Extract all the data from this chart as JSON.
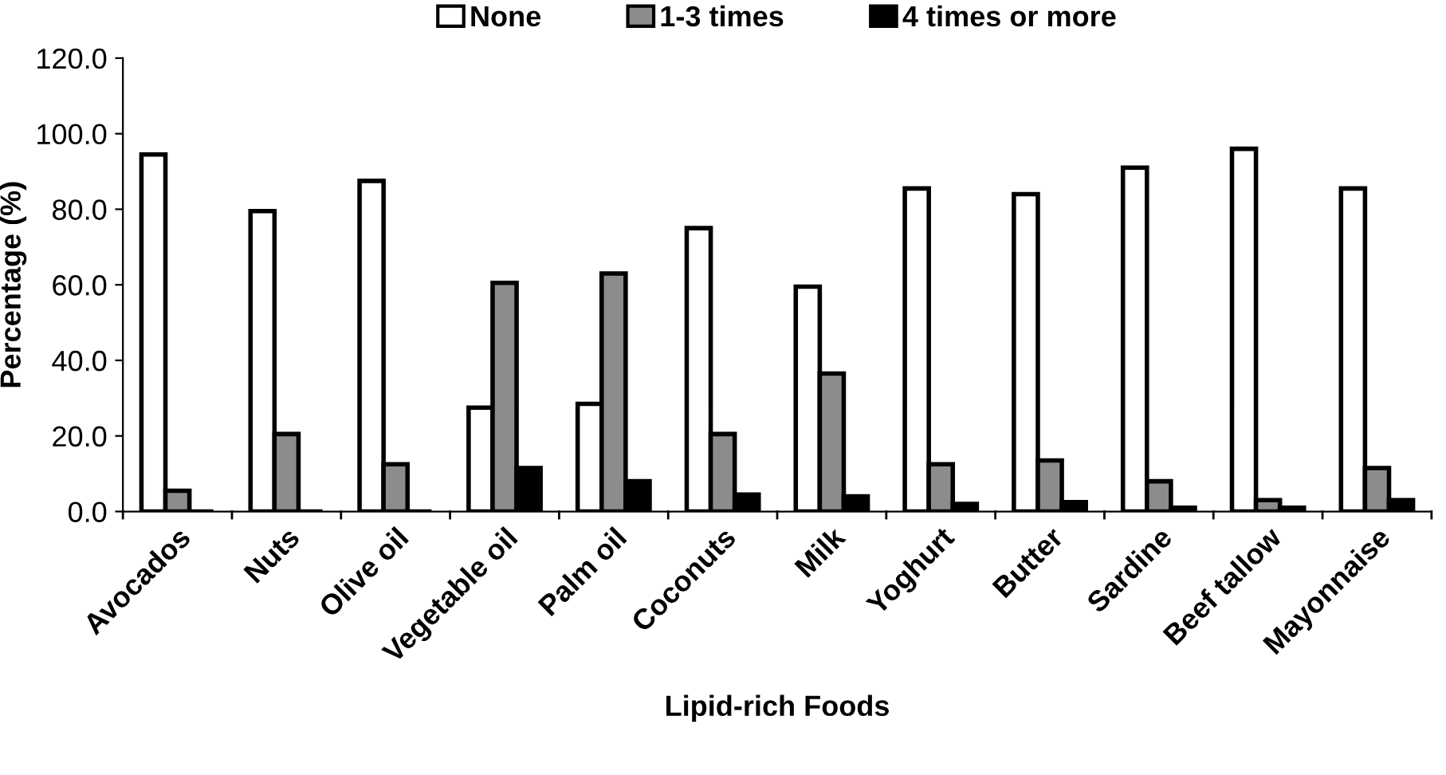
{
  "chart_data": {
    "type": "bar",
    "xlabel": "Lipid-rich Foods",
    "ylabel": "Percentage (%)",
    "categories": [
      "Avocados",
      "Nuts",
      "Olive oil",
      "Vegetable oil",
      "Palm oil",
      "Coconuts",
      "Milk",
      "Yoghurt",
      "Butter",
      "Sardine",
      "Beef tallow",
      "Mayonnaise"
    ],
    "series": [
      {
        "name": "None",
        "color": "#ffffff",
        "values": [
          94.5,
          79.5,
          87.5,
          27.5,
          28.5,
          75,
          59.5,
          85.5,
          84,
          91,
          96,
          85.5
        ]
      },
      {
        "name": "1-3 times",
        "color": "#8c8c8c",
        "values": [
          5.5,
          20.5,
          12.5,
          60.5,
          63,
          20.5,
          36.5,
          12.5,
          13.5,
          8,
          3,
          11.5
        ]
      },
      {
        "name": "4 times or more",
        "color": "#000000",
        "values": [
          0,
          0,
          0,
          11.5,
          8,
          4.5,
          4,
          2,
          2.5,
          1,
          1,
          3
        ]
      }
    ],
    "ylim": [
      0,
      120
    ],
    "yticks": [
      {
        "value": 0,
        "label": "0.0"
      },
      {
        "value": 20,
        "label": "20.0"
      },
      {
        "value": 40,
        "label": "40.0"
      },
      {
        "value": 60,
        "label": "60.0"
      },
      {
        "value": 80,
        "label": "80.0"
      },
      {
        "value": 100,
        "label": "100.0"
      },
      {
        "value": 120,
        "label": "120.0"
      }
    ],
    "legend": "top",
    "grid": false
  }
}
